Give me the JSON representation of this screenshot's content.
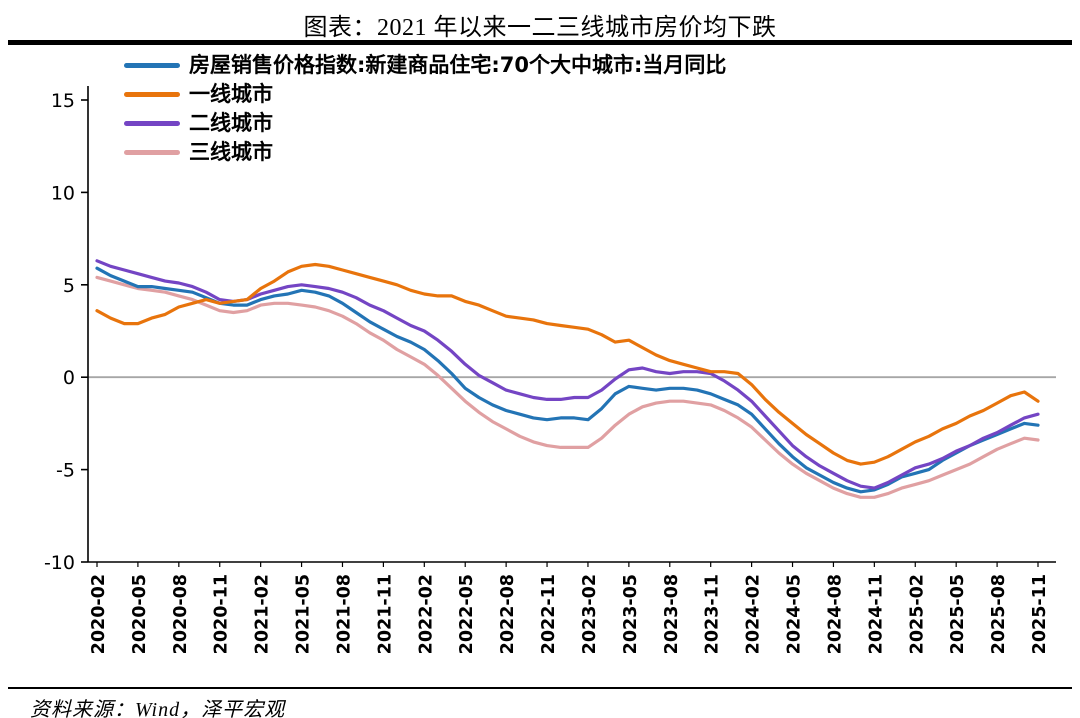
{
  "title": "图表：2021 年以来一二三线城市房价均下跌",
  "source": "资料来源：Wind，泽平宏观",
  "chart_data": {
    "type": "line",
    "title": "图表：2021 年以来一二三线城市房价均下跌",
    "xlabel": "",
    "ylabel": "",
    "ylim": [
      -10,
      15
    ],
    "yticks": [
      15,
      10,
      5,
      0,
      -5,
      -10
    ],
    "x_tick_step": 3,
    "grid": "zero-line-only",
    "legend_position": "top-left",
    "zero_line_color": "#A6A6A6",
    "axis_color": "#000000",
    "x": [
      "2020-02",
      "2020-03",
      "2020-04",
      "2020-05",
      "2020-06",
      "2020-07",
      "2020-08",
      "2020-09",
      "2020-10",
      "2020-11",
      "2020-12",
      "2021-01",
      "2021-02",
      "2021-03",
      "2021-04",
      "2021-05",
      "2021-06",
      "2021-07",
      "2021-08",
      "2021-09",
      "2021-10",
      "2021-11",
      "2021-12",
      "2022-01",
      "2022-02",
      "2022-03",
      "2022-04",
      "2022-05",
      "2022-06",
      "2022-07",
      "2022-08",
      "2022-09",
      "2022-10",
      "2022-11",
      "2022-12",
      "2023-01",
      "2023-02",
      "2023-03",
      "2023-04",
      "2023-05",
      "2023-06",
      "2023-07",
      "2023-08",
      "2023-09",
      "2023-10",
      "2023-11",
      "2023-12",
      "2024-01",
      "2024-02",
      "2024-03",
      "2024-04",
      "2024-05",
      "2024-06",
      "2024-07",
      "2024-08",
      "2024-09",
      "2024-10",
      "2024-11",
      "2024-12",
      "2025-01",
      "2025-02",
      "2025-03",
      "2025-04",
      "2025-05",
      "2025-06",
      "2025-07",
      "2025-08",
      "2025-09",
      "2025-10",
      "2025-11"
    ],
    "series": [
      {
        "name": "房屋销售价格指数:新建商品住宅:70个大中城市:当月同比",
        "color": "#2374B5",
        "values": [
          5.9,
          5.5,
          5.2,
          4.9,
          4.9,
          4.8,
          4.7,
          4.6,
          4.3,
          4.0,
          3.9,
          3.9,
          4.2,
          4.4,
          4.5,
          4.7,
          4.6,
          4.4,
          4.0,
          3.5,
          3.0,
          2.6,
          2.2,
          1.9,
          1.5,
          0.9,
          0.2,
          -0.6,
          -1.1,
          -1.5,
          -1.8,
          -2.0,
          -2.2,
          -2.3,
          -2.2,
          -2.2,
          -2.3,
          -1.7,
          -0.9,
          -0.5,
          -0.6,
          -0.7,
          -0.6,
          -0.6,
          -0.7,
          -0.9,
          -1.2,
          -1.5,
          -2.0,
          -2.8,
          -3.6,
          -4.3,
          -4.9,
          -5.3,
          -5.7,
          -6.0,
          -6.2,
          -6.1,
          -5.8,
          -5.4,
          -5.2,
          -5.0,
          -4.5,
          -4.1,
          -3.7,
          -3.4,
          -3.1,
          -2.8,
          -2.5,
          -2.6
        ]
      },
      {
        "name": "一线城市",
        "color": "#E8740C",
        "values": [
          3.6,
          3.2,
          2.9,
          2.9,
          3.2,
          3.4,
          3.8,
          4.0,
          4.2,
          4.0,
          4.1,
          4.2,
          4.8,
          5.2,
          5.7,
          6.0,
          6.1,
          6.0,
          5.8,
          5.6,
          5.4,
          5.2,
          5.0,
          4.7,
          4.5,
          4.4,
          4.4,
          4.1,
          3.9,
          3.6,
          3.3,
          3.2,
          3.1,
          2.9,
          2.8,
          2.7,
          2.6,
          2.3,
          1.9,
          2.0,
          1.6,
          1.2,
          0.9,
          0.7,
          0.5,
          0.3,
          0.3,
          0.2,
          -0.4,
          -1.2,
          -1.9,
          -2.5,
          -3.1,
          -3.6,
          -4.1,
          -4.5,
          -4.7,
          -4.6,
          -4.3,
          -3.9,
          -3.5,
          -3.2,
          -2.8,
          -2.5,
          -2.1,
          -1.8,
          -1.4,
          -1.0,
          -0.8,
          -1.3
        ]
      },
      {
        "name": "二线城市",
        "color": "#7445C4",
        "values": [
          6.3,
          6.0,
          5.8,
          5.6,
          5.4,
          5.2,
          5.1,
          4.9,
          4.6,
          4.2,
          4.1,
          4.2,
          4.5,
          4.7,
          4.9,
          5.0,
          4.9,
          4.8,
          4.6,
          4.3,
          3.9,
          3.6,
          3.2,
          2.8,
          2.5,
          2.0,
          1.4,
          0.7,
          0.1,
          -0.3,
          -0.7,
          -0.9,
          -1.1,
          -1.2,
          -1.2,
          -1.1,
          -1.1,
          -0.7,
          -0.1,
          0.4,
          0.5,
          0.3,
          0.2,
          0.3,
          0.3,
          0.2,
          -0.2,
          -0.7,
          -1.3,
          -2.1,
          -2.9,
          -3.7,
          -4.3,
          -4.8,
          -5.2,
          -5.6,
          -5.9,
          -6.0,
          -5.7,
          -5.3,
          -4.9,
          -4.7,
          -4.4,
          -4.0,
          -3.7,
          -3.3,
          -3.0,
          -2.6,
          -2.2,
          -2.0
        ]
      },
      {
        "name": "三线城市",
        "color": "#E0A0A2",
        "values": [
          5.4,
          5.2,
          5.0,
          4.8,
          4.7,
          4.6,
          4.4,
          4.2,
          3.9,
          3.6,
          3.5,
          3.6,
          3.9,
          4.0,
          4.0,
          3.9,
          3.8,
          3.6,
          3.3,
          2.9,
          2.4,
          2.0,
          1.5,
          1.1,
          0.7,
          0.1,
          -0.6,
          -1.3,
          -1.9,
          -2.4,
          -2.8,
          -3.2,
          -3.5,
          -3.7,
          -3.8,
          -3.8,
          -3.8,
          -3.3,
          -2.6,
          -2.0,
          -1.6,
          -1.4,
          -1.3,
          -1.3,
          -1.4,
          -1.5,
          -1.8,
          -2.2,
          -2.7,
          -3.4,
          -4.1,
          -4.7,
          -5.2,
          -5.6,
          -6.0,
          -6.3,
          -6.5,
          -6.5,
          -6.3,
          -6.0,
          -5.8,
          -5.6,
          -5.3,
          -5.0,
          -4.7,
          -4.3,
          -3.9,
          -3.6,
          -3.3,
          -3.4
        ]
      }
    ]
  }
}
